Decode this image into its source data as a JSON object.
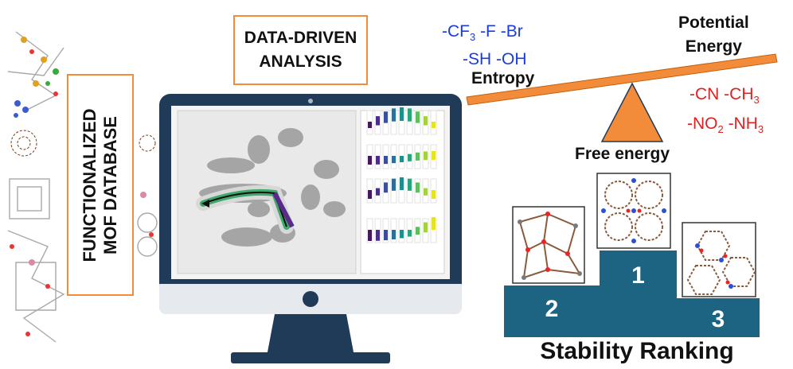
{
  "left_label": {
    "line1": "FUNCTIONALIZED",
    "line2": "MOF DATABASE"
  },
  "top_label": {
    "line1": "DATA-DRIVEN",
    "line2": "ANALYSIS"
  },
  "groups_entropy": {
    "line1": [
      "-CF",
      "3",
      " -F -Br"
    ],
    "line2": "-SH -OH"
  },
  "groups_potential": {
    "line1": "-CN -CH",
    "line1_sub": "3",
    "line2_a": "-NO",
    "line2_sub": "2",
    "line2_b": " -NH",
    "line2_sub2": "3"
  },
  "balance": {
    "left": "Entropy",
    "right_line1": "Potential",
    "right_line2": "Energy",
    "center": "Free energy"
  },
  "podium": {
    "first": "1",
    "second": "2",
    "third": "3",
    "title": "Stability Ranking"
  },
  "colors": {
    "accent": "#f28c3a",
    "podium": "#1c6481",
    "monitor": "#1f3b57",
    "blue": "#1a3be0",
    "red": "#e32020"
  }
}
